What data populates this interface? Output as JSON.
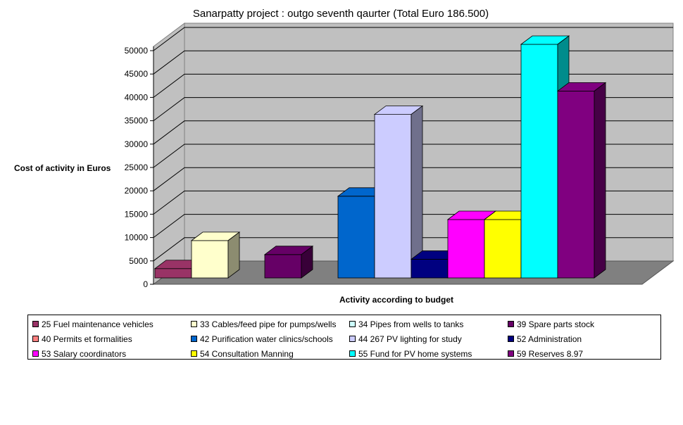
{
  "chart_data": {
    "type": "bar",
    "title": "Sanarpatty project : outgo seventh qaurter (Total Euro 186.500)",
    "xlabel": "Activity according to budget",
    "ylabel": "Cost of activity in Euros",
    "ylim": [
      0,
      50000
    ],
    "yticks": [
      "0",
      "5000",
      "10000",
      "15000",
      "20000",
      "25000",
      "30000",
      "35000",
      "40000",
      "45000",
      "50000"
    ],
    "grid": true,
    "legend_position": "bottom",
    "series": [
      {
        "name": "25 Fuel maintenance vehicles",
        "value": 2000,
        "color": "#993366"
      },
      {
        "name": "33 Cables/feed pipe for pumps/wells",
        "value": 8000,
        "color": "#FFFFCC"
      },
      {
        "name": "34 Pipes from wells to tanks",
        "value": 0,
        "color": "#CCFFFF"
      },
      {
        "name": "39 Spare parts stock",
        "value": 5000,
        "color": "#660066"
      },
      {
        "name": "40 Permits et formalities",
        "value": 0,
        "color": "#FF8080"
      },
      {
        "name": "42 Purification water clinics/schools",
        "value": 17500,
        "color": "#0066CC"
      },
      {
        "name": "44 267 PV lighting for study",
        "value": 35000,
        "color": "#CCCCFF"
      },
      {
        "name": "52 Administration",
        "value": 4000,
        "color": "#000080"
      },
      {
        "name": "53 Salary coordinators",
        "value": 12500,
        "color": "#FF00FF"
      },
      {
        "name": "54 Consultation Manning",
        "value": 12500,
        "color": "#FFFF00"
      },
      {
        "name": "55 Fund for PV home systems",
        "value": 50000,
        "color": "#00FFFF"
      },
      {
        "name": "59 Reserves 8.97",
        "value": 40000,
        "color": "#800080"
      }
    ]
  }
}
